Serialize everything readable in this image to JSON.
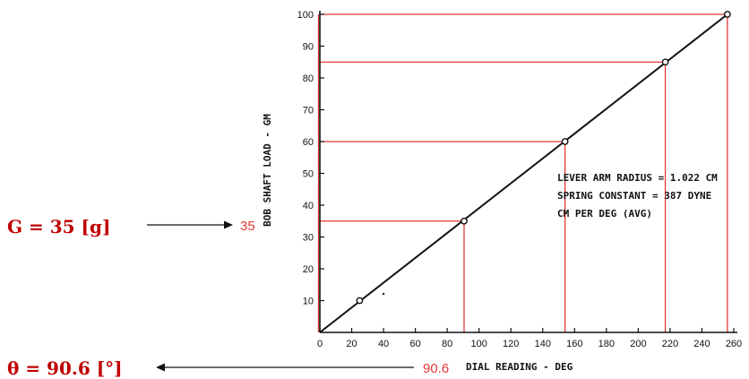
{
  "annotations": {
    "load_formula": "G = 35 [g]",
    "angle_formula": "θ = 90.6 [°]",
    "load_marker": "35",
    "angle_marker": "90.6"
  },
  "notes": [
    "LEVER ARM RADIUS = 1.022 CM",
    "SPRING CONSTANT   = 387 DYNE",
    "CM PER DEG  (AVG)"
  ],
  "colors": {
    "annotation": "#c00000",
    "guide": "#e53935",
    "line": "#111111"
  },
  "chart_data": {
    "type": "line",
    "title": "",
    "xlabel": "DIAL READING - DEG",
    "ylabel": "BOB SHAFT LOAD - GM",
    "xlim": [
      0,
      260
    ],
    "ylim": [
      0,
      100
    ],
    "xticks": [
      0,
      20,
      40,
      60,
      80,
      100,
      120,
      140,
      160,
      180,
      200,
      220,
      240,
      260
    ],
    "yticks": [
      10,
      20,
      30,
      40,
      50,
      60,
      70,
      80,
      90,
      100
    ],
    "fit_line": {
      "x": [
        0,
        256
      ],
      "y": [
        0,
        100
      ]
    },
    "points": [
      {
        "x": 25,
        "y": 10
      },
      {
        "x": 90.6,
        "y": 35
      },
      {
        "x": 154,
        "y": 60
      },
      {
        "x": 217,
        "y": 85
      },
      {
        "x": 256,
        "y": 100
      }
    ],
    "guides": [
      {
        "x": 90.6,
        "y": 35
      },
      {
        "x": 154,
        "y": 60
      },
      {
        "x": 217,
        "y": 85
      },
      {
        "x": 256,
        "y": 100
      }
    ],
    "grid": false
  }
}
